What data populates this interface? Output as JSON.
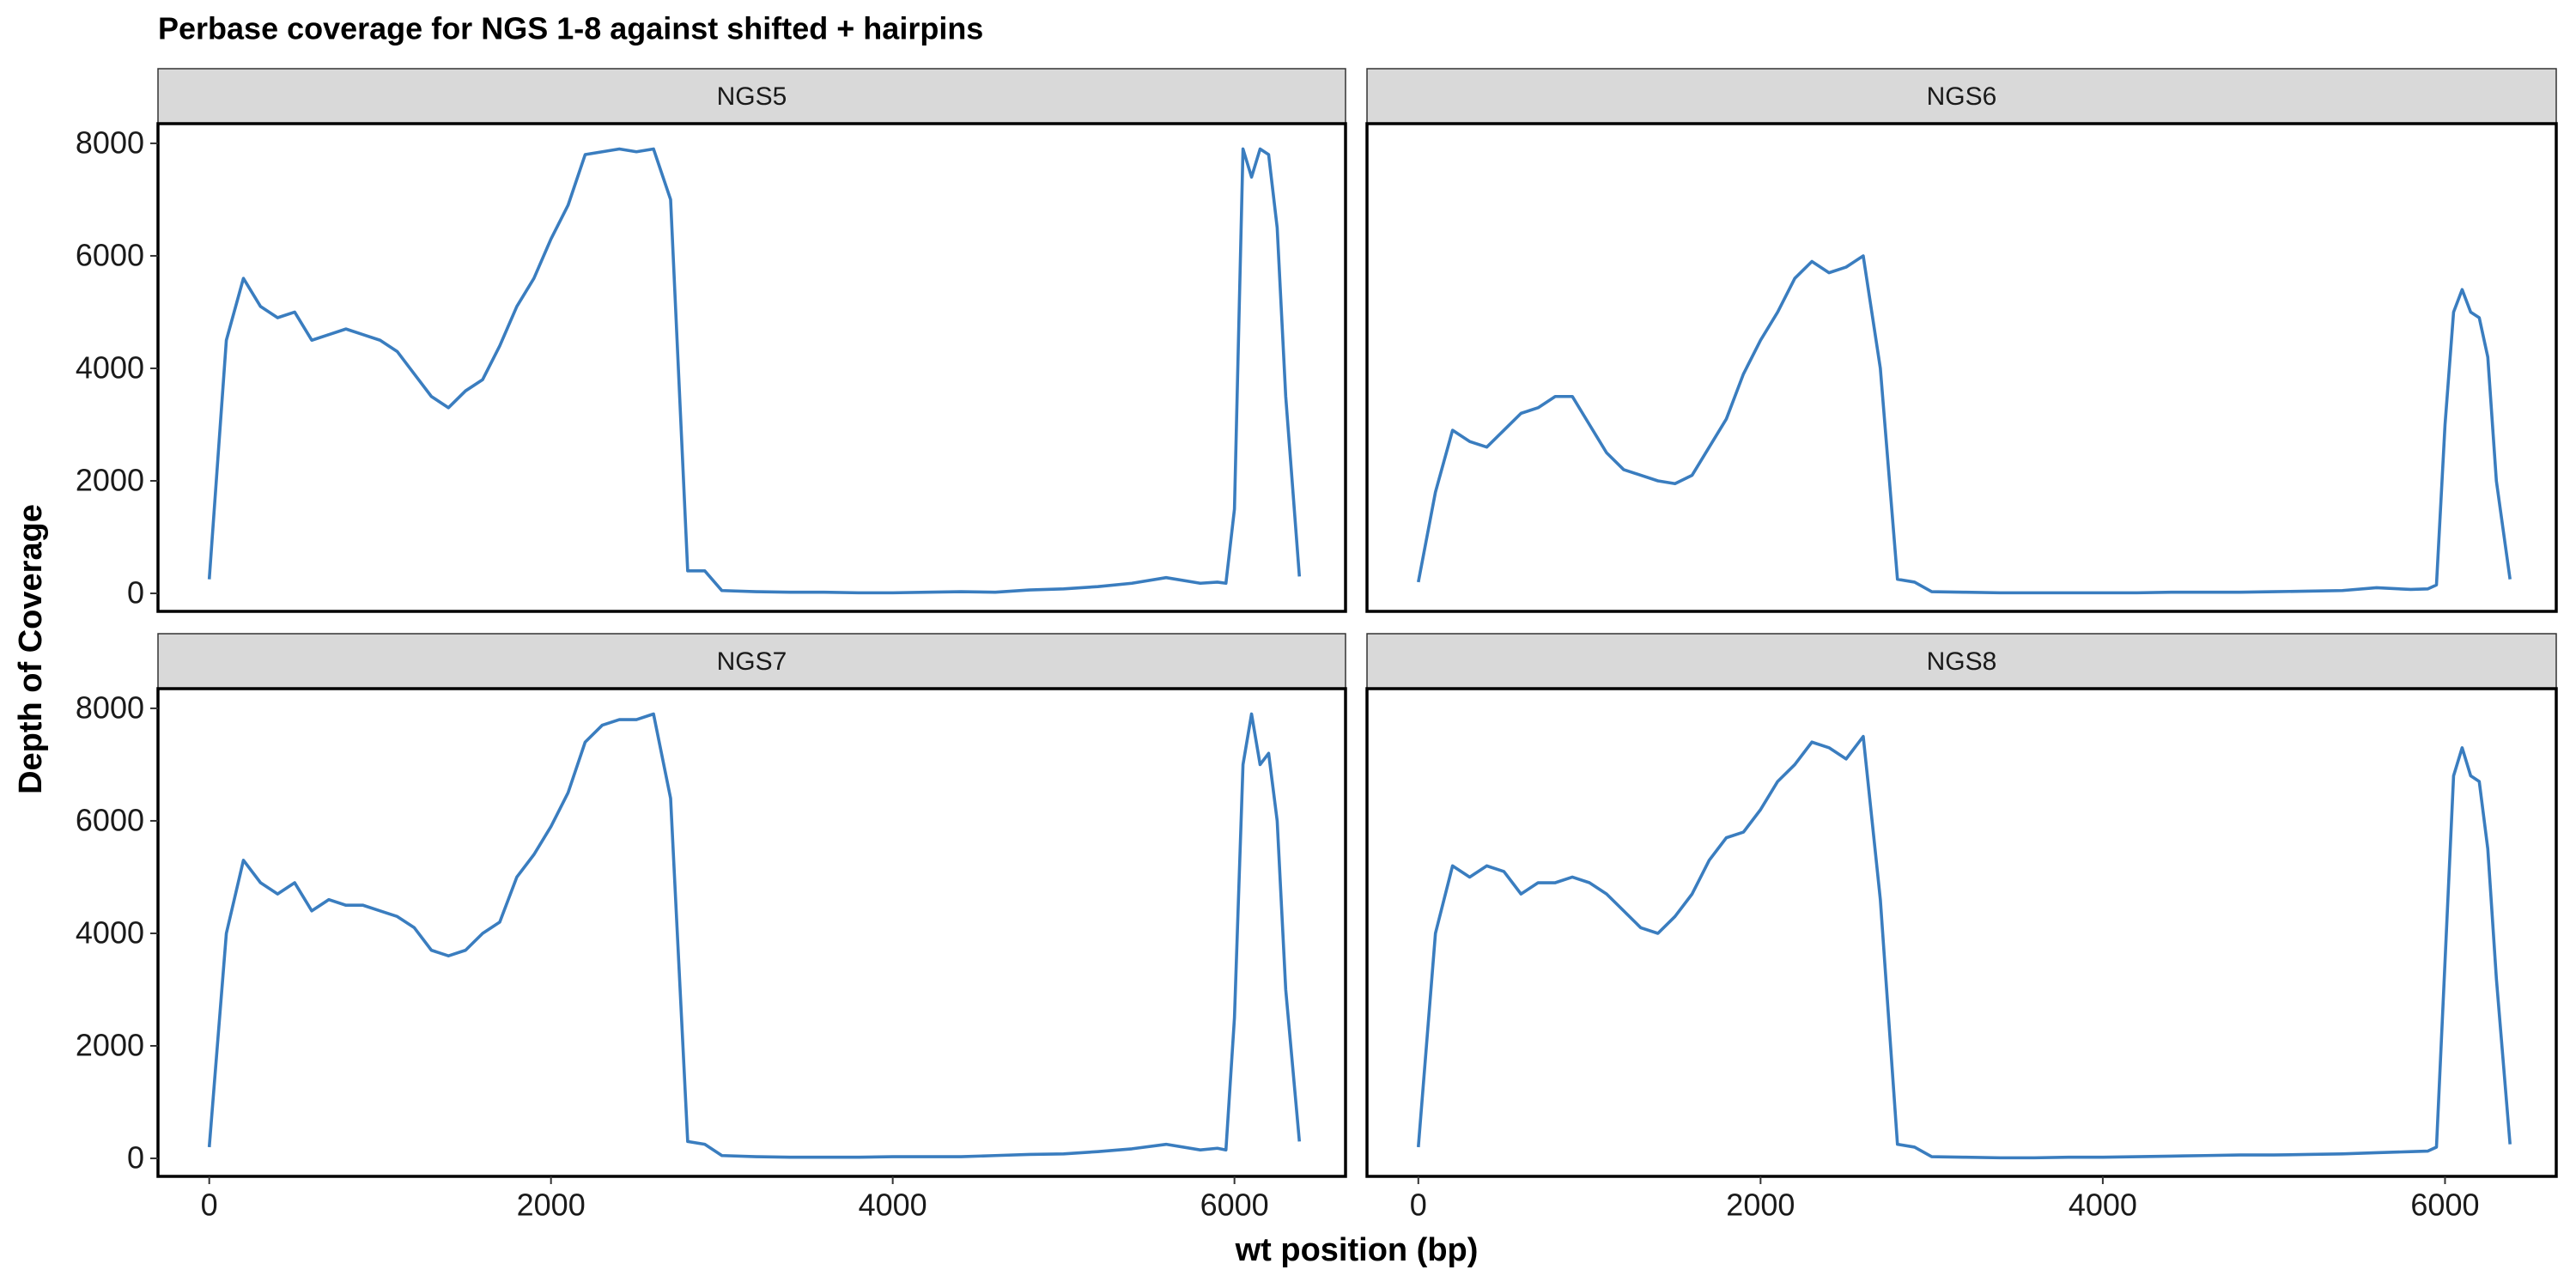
{
  "title": "Perbase coverage for NGS 1-8 against shifted + hairpins",
  "x_label": "wt position (bp)",
  "y_label": "Depth of Coverage",
  "chart_data": [
    {
      "type": "line",
      "title": "NGS5",
      "color": "#3a7dbf",
      "xlim": [
        -300,
        6650
      ],
      "ylim": [
        -320,
        8350
      ],
      "yticks": [
        0,
        2000,
        4000,
        6000,
        8000
      ],
      "x": [
        0,
        100,
        200,
        300,
        400,
        500,
        600,
        700,
        800,
        900,
        1000,
        1100,
        1200,
        1300,
        1400,
        1500,
        1600,
        1700,
        1800,
        1900,
        2000,
        2100,
        2200,
        2300,
        2400,
        2500,
        2600,
        2700,
        2800,
        2900,
        3000,
        3200,
        3400,
        3600,
        3800,
        4000,
        4200,
        4400,
        4600,
        4800,
        5000,
        5200,
        5400,
        5600,
        5800,
        5900,
        5950,
        6000,
        6050,
        6100,
        6150,
        6200,
        6250,
        6300,
        6380
      ],
      "values": [
        250,
        4500,
        5600,
        5100,
        4900,
        5000,
        4500,
        4600,
        4700,
        4600,
        4500,
        4300,
        3900,
        3500,
        3300,
        3600,
        3800,
        4400,
        5100,
        5600,
        6300,
        6900,
        7800,
        7850,
        7900,
        7850,
        7900,
        7000,
        400,
        400,
        50,
        30,
        20,
        20,
        10,
        10,
        20,
        30,
        20,
        60,
        80,
        120,
        180,
        280,
        180,
        200,
        180,
        1500,
        7900,
        7400,
        7900,
        7800,
        6500,
        3500,
        300
      ]
    },
    {
      "type": "line",
      "title": "NGS6",
      "color": "#3a7dbf",
      "xlim": [
        -300,
        6650
      ],
      "ylim": [
        -320,
        8350
      ],
      "x": [
        0,
        100,
        200,
        300,
        400,
        500,
        600,
        700,
        800,
        900,
        1000,
        1100,
        1200,
        1300,
        1400,
        1500,
        1600,
        1700,
        1800,
        1900,
        2000,
        2100,
        2200,
        2300,
        2400,
        2500,
        2600,
        2700,
        2800,
        2900,
        3000,
        3200,
        3400,
        3600,
        3800,
        4000,
        4200,
        4400,
        4600,
        4800,
        5000,
        5200,
        5400,
        5600,
        5800,
        5900,
        5950,
        6000,
        6050,
        6100,
        6150,
        6200,
        6250,
        6300,
        6380
      ],
      "values": [
        200,
        1800,
        2900,
        2700,
        2600,
        2900,
        3200,
        3300,
        3500,
        3500,
        3000,
        2500,
        2200,
        2100,
        2000,
        1950,
        2100,
        2600,
        3100,
        3900,
        4500,
        5000,
        5600,
        5900,
        5700,
        5800,
        6000,
        4000,
        250,
        200,
        30,
        20,
        10,
        10,
        10,
        10,
        10,
        20,
        20,
        20,
        30,
        40,
        50,
        100,
        70,
        80,
        150,
        3000,
        5000,
        5400,
        5000,
        4900,
        4200,
        2000,
        250
      ]
    },
    {
      "type": "line",
      "title": "NGS7",
      "color": "#3a7dbf",
      "xlim": [
        -300,
        6650
      ],
      "ylim": [
        -320,
        8350
      ],
      "xticks": [
        0,
        2000,
        4000,
        6000
      ],
      "yticks": [
        0,
        2000,
        4000,
        6000,
        8000
      ],
      "x": [
        0,
        100,
        200,
        300,
        400,
        500,
        600,
        700,
        800,
        900,
        1000,
        1100,
        1200,
        1300,
        1400,
        1500,
        1600,
        1700,
        1800,
        1900,
        2000,
        2100,
        2200,
        2300,
        2400,
        2500,
        2600,
        2700,
        2800,
        2900,
        3000,
        3200,
        3400,
        3600,
        3800,
        4000,
        4200,
        4400,
        4600,
        4800,
        5000,
        5200,
        5400,
        5600,
        5800,
        5900,
        5950,
        6000,
        6050,
        6100,
        6150,
        6200,
        6250,
        6300,
        6380
      ],
      "values": [
        200,
        4000,
        5300,
        4900,
        4700,
        4900,
        4400,
        4600,
        4500,
        4500,
        4400,
        4300,
        4100,
        3700,
        3600,
        3700,
        4000,
        4200,
        5000,
        5400,
        5900,
        6500,
        7400,
        7700,
        7800,
        7800,
        7900,
        6400,
        300,
        250,
        50,
        30,
        20,
        20,
        20,
        30,
        30,
        30,
        50,
        70,
        80,
        120,
        170,
        250,
        150,
        180,
        150,
        2500,
        7000,
        7900,
        7000,
        7200,
        6000,
        3000,
        300
      ]
    },
    {
      "type": "line",
      "title": "NGS8",
      "color": "#3a7dbf",
      "xlim": [
        -300,
        6650
      ],
      "ylim": [
        -320,
        8350
      ],
      "xticks": [
        0,
        2000,
        4000,
        6000
      ],
      "x": [
        0,
        100,
        200,
        300,
        400,
        500,
        600,
        700,
        800,
        900,
        1000,
        1100,
        1200,
        1300,
        1400,
        1500,
        1600,
        1700,
        1800,
        1900,
        2000,
        2100,
        2200,
        2300,
        2400,
        2500,
        2600,
        2700,
        2800,
        2900,
        3000,
        3200,
        3400,
        3600,
        3800,
        4000,
        4200,
        4400,
        4600,
        4800,
        5000,
        5200,
        5400,
        5600,
        5800,
        5900,
        5950,
        6000,
        6050,
        6100,
        6150,
        6200,
        6250,
        6300,
        6380
      ],
      "values": [
        200,
        4000,
        5200,
        5000,
        5200,
        5100,
        4700,
        4900,
        4900,
        5000,
        4900,
        4700,
        4400,
        4100,
        4000,
        4300,
        4700,
        5300,
        5700,
        5800,
        6200,
        6700,
        7000,
        7400,
        7300,
        7100,
        7500,
        4600,
        250,
        200,
        30,
        20,
        10,
        10,
        20,
        20,
        30,
        40,
        50,
        60,
        60,
        70,
        80,
        100,
        120,
        130,
        200,
        3500,
        6800,
        7300,
        6800,
        6700,
        5500,
        3200,
        250
      ]
    }
  ]
}
